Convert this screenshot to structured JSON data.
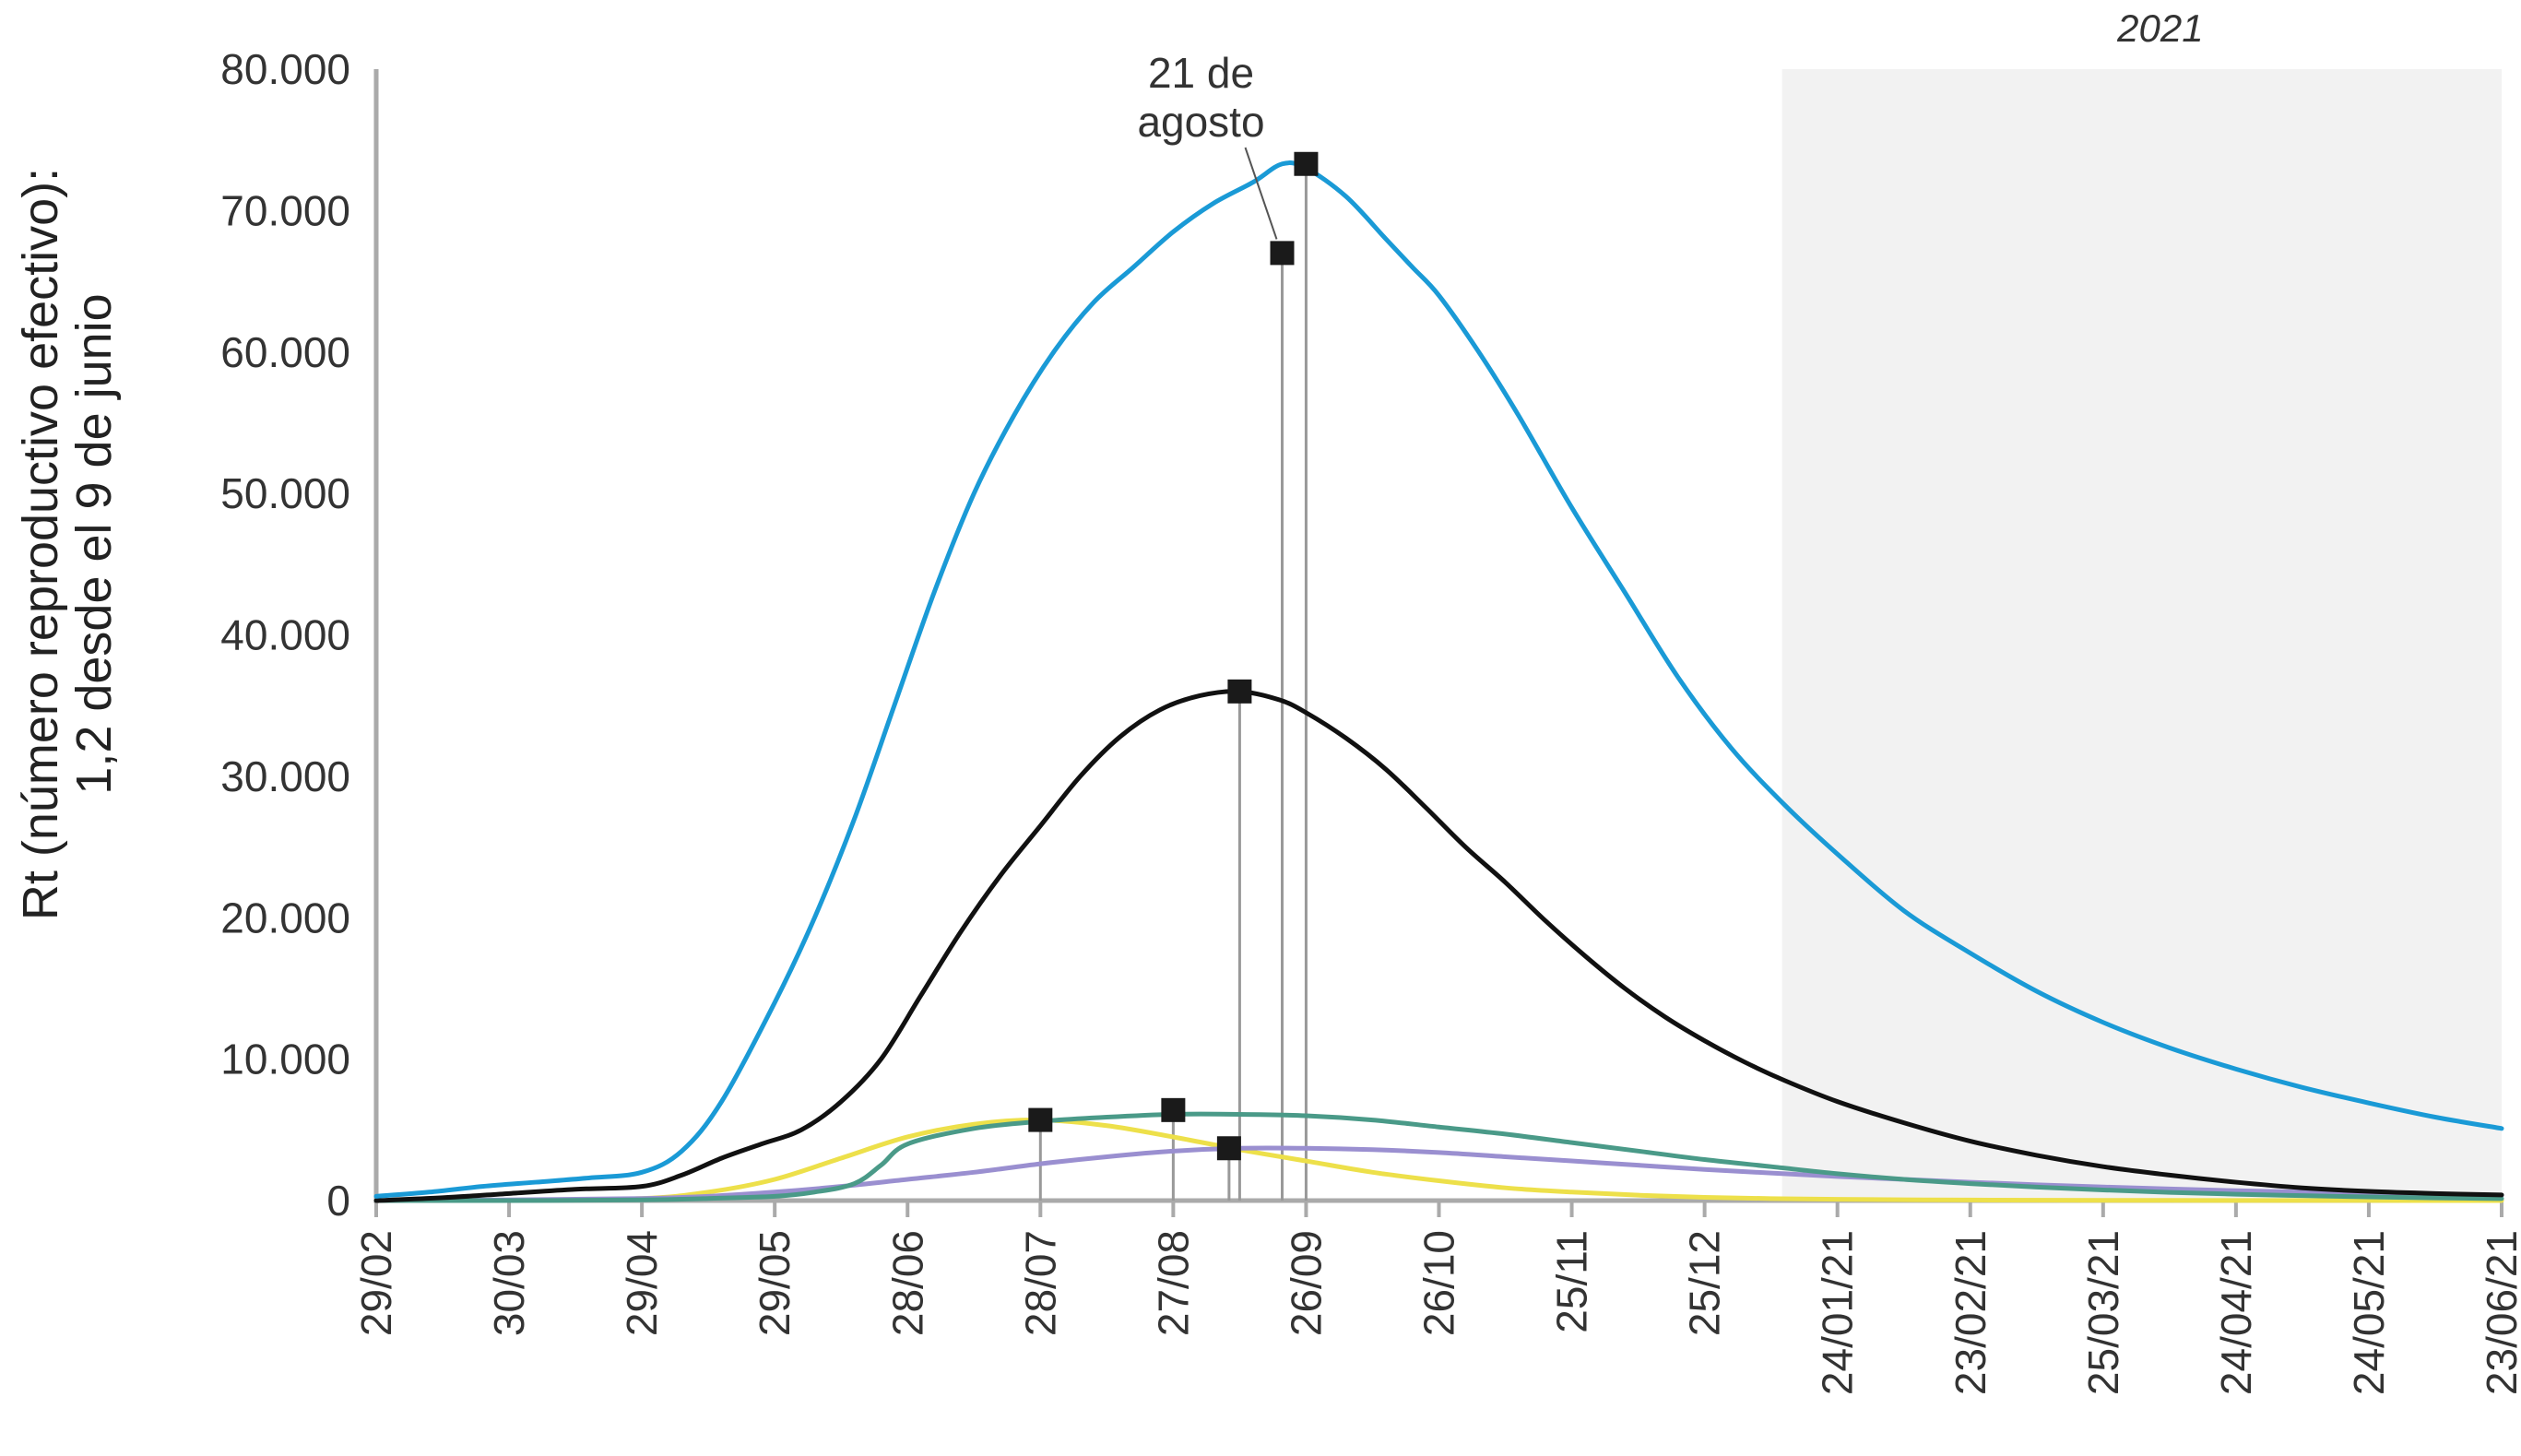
{
  "chart_data": {
    "type": "line",
    "ylabel_lines": [
      "Rt (número reproductivo efectivo):",
      "1,2 desde el 9 de junio"
    ],
    "ylim": [
      0,
      80000
    ],
    "y_ticks": [
      0,
      10000,
      20000,
      30000,
      40000,
      50000,
      60000,
      70000,
      80000
    ],
    "y_tick_labels": [
      "0",
      "10.000",
      "20.000",
      "30.000",
      "40.000",
      "50.000",
      "60.000",
      "70.000",
      "80.000"
    ],
    "x_tick_labels": [
      "29/02",
      "30/03",
      "29/04",
      "29/05",
      "28/06",
      "28/07",
      "27/08",
      "26/09",
      "26/10",
      "25/11",
      "25/12",
      "24/01/21",
      "23/02/21",
      "25/03/21",
      "24/04/21",
      "24/05/21",
      "23/06/21"
    ],
    "shaded_period": {
      "label": "2021",
      "from": 11,
      "to": 16,
      "color": "#f2f2f2"
    },
    "annotation": {
      "lines": [
        "21 de",
        "agosto"
      ],
      "x": 6.82,
      "y": 67000
    },
    "grid": false,
    "series": [
      {
        "color": "#1a9ad6",
        "x": [
          0,
          0.4,
          0.8,
          1.2,
          1.6,
          2.0,
          2.3,
          2.6,
          3.0,
          3.3,
          3.6,
          3.9,
          4.2,
          4.5,
          4.8,
          5.1,
          5.4,
          5.7,
          6.0,
          6.3,
          6.6,
          6.82,
          7.0,
          7.3,
          7.6,
          7.8,
          8.0,
          8.3,
          8.6,
          9.0,
          9.4,
          9.8,
          10.2,
          10.6,
          11.0,
          11.5,
          12.0,
          12.5,
          13.0,
          13.5,
          14.0,
          14.5,
          15.0,
          15.5,
          16.0
        ],
        "y": [
          300,
          600,
          1000,
          1300,
          1600,
          2000,
          3500,
          7000,
          14000,
          20000,
          27000,
          35000,
          43000,
          50000,
          55500,
          60000,
          63500,
          66000,
          68500,
          70500,
          72000,
          73300,
          73000,
          71000,
          68000,
          66000,
          64000,
          60000,
          55500,
          49000,
          43000,
          37000,
          32000,
          28000,
          24500,
          20500,
          17500,
          14800,
          12600,
          10800,
          9300,
          8000,
          6900,
          5900,
          5100
        ]
      },
      {
        "color": "#111111",
        "x": [
          0,
          0.5,
          1.0,
          1.5,
          2.0,
          2.3,
          2.6,
          2.9,
          3.2,
          3.5,
          3.8,
          4.1,
          4.4,
          4.7,
          5.0,
          5.3,
          5.6,
          5.9,
          6.2,
          6.5,
          6.8,
          7.0,
          7.3,
          7.6,
          7.9,
          8.2,
          8.5,
          8.8,
          9.1,
          9.4,
          9.7,
          10.0,
          10.3,
          10.6,
          11.0,
          11.5,
          12.0,
          12.5,
          13.0,
          13.5,
          14.0,
          14.5,
          15.0,
          15.5,
          16.0
        ],
        "y": [
          0,
          200,
          500,
          800,
          1000,
          1800,
          3000,
          4000,
          5000,
          7000,
          10000,
          14500,
          19000,
          23000,
          26500,
          30000,
          32800,
          34700,
          35700,
          36000,
          35400,
          34500,
          32700,
          30500,
          27800,
          25000,
          22500,
          19800,
          17300,
          15000,
          13000,
          11300,
          9800,
          8500,
          7000,
          5500,
          4200,
          3200,
          2400,
          1800,
          1300,
          900,
          650,
          500,
          400
        ]
      },
      {
        "color": "#4a9a88",
        "x": [
          0,
          1.0,
          2.0,
          2.5,
          3.0,
          3.3,
          3.6,
          3.8,
          4.0,
          4.5,
          5.0,
          5.5,
          6.0,
          6.5,
          7.0,
          7.5,
          8.0,
          8.5,
          9.0,
          9.5,
          10.0,
          10.5,
          11.0,
          11.5,
          12.0,
          12.5,
          13.0,
          13.5,
          14.0,
          14.5,
          15.0,
          15.5,
          16.0
        ],
        "y": [
          0,
          0,
          50,
          150,
          300,
          600,
          1200,
          2500,
          4000,
          5100,
          5600,
          5900,
          6100,
          6100,
          6000,
          5700,
          5200,
          4700,
          4100,
          3500,
          2900,
          2400,
          1900,
          1500,
          1200,
          950,
          750,
          580,
          450,
          350,
          260,
          190,
          140
        ]
      },
      {
        "color": "#ede04a",
        "x": [
          0,
          1.0,
          2.0,
          2.5,
          3.0,
          3.5,
          4.0,
          4.5,
          5.0,
          5.5,
          6.0,
          6.5,
          7.0,
          7.5,
          8.0,
          8.5,
          9.0,
          9.5,
          10.0,
          10.5,
          11.0,
          11.5,
          12.0,
          13.0,
          14.0,
          15.0,
          16.0
        ],
        "y": [
          0,
          30,
          150,
          600,
          1500,
          3000,
          4500,
          5400,
          5700,
          5300,
          4500,
          3600,
          2800,
          2000,
          1400,
          900,
          600,
          380,
          230,
          140,
          90,
          60,
          40,
          20,
          10,
          5,
          0
        ]
      },
      {
        "color": "#9a8fd0",
        "x": [
          0,
          1.0,
          2.0,
          2.5,
          3.0,
          3.5,
          4.0,
          4.5,
          5.0,
          5.5,
          6.0,
          6.5,
          7.0,
          7.5,
          8.0,
          8.5,
          9.0,
          9.5,
          10.0,
          10.5,
          11.0,
          11.5,
          12.0,
          12.5,
          13.0,
          13.5,
          14.0,
          14.5,
          15.0,
          15.5,
          16.0
        ],
        "y": [
          0,
          50,
          150,
          300,
          600,
          1000,
          1500,
          2000,
          2600,
          3100,
          3500,
          3700,
          3700,
          3600,
          3400,
          3100,
          2800,
          2500,
          2200,
          1950,
          1700,
          1500,
          1300,
          1120,
          960,
          820,
          700,
          600,
          510,
          440,
          380
        ]
      }
    ],
    "markers": [
      {
        "x": 5.0,
        "y": 5700
      },
      {
        "x": 6.82,
        "y": 67000
      },
      {
        "x": 6.0,
        "y": 6400
      },
      {
        "x": 6.5,
        "y": 36000
      },
      {
        "x": 6.42,
        "y": 3700
      },
      {
        "x": 7.0,
        "y": 73300
      }
    ]
  }
}
